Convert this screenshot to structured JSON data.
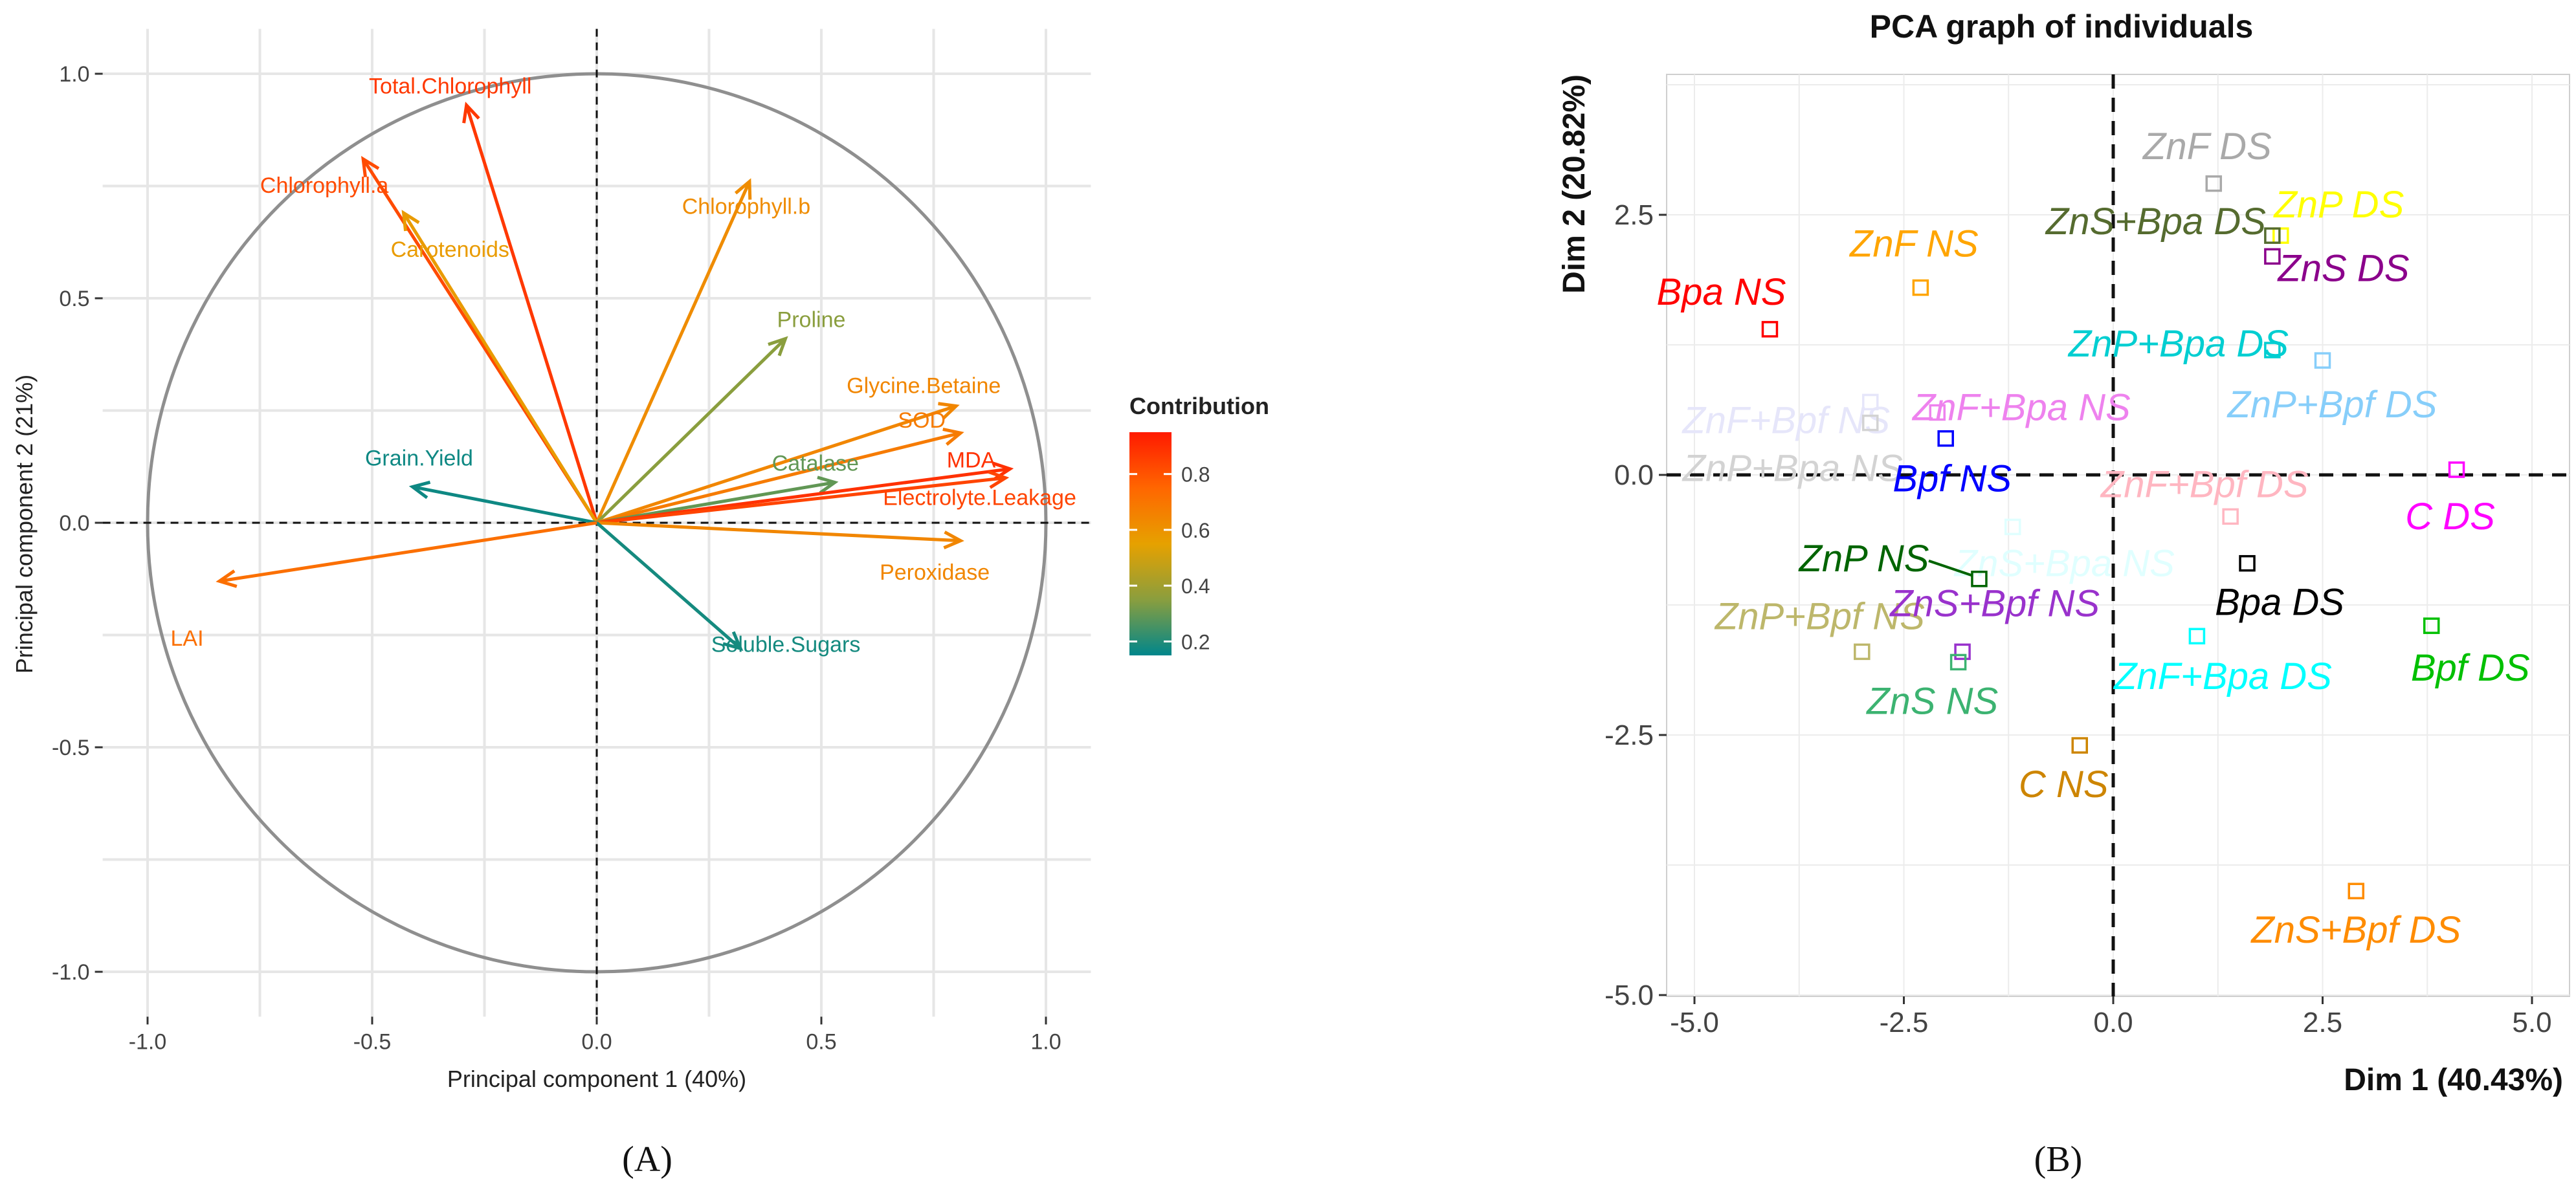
{
  "panel_labels": {
    "a": "(A)",
    "b": "(B)"
  },
  "chart_data": [
    {
      "type": "scatter",
      "subtype": "pca-variable-correlation-circle",
      "title": "",
      "xlabel": "Principal component 1 (40%)",
      "ylabel": "Principal component 2 (21%)",
      "xlim": [
        -1.1,
        1.1
      ],
      "ylim": [
        -1.1,
        1.1
      ],
      "xticks": [
        -1.0,
        -0.5,
        0.0,
        0.5,
        1.0
      ],
      "xtick_labels": [
        "-1.0",
        "-0.5",
        "0.0",
        "0.5",
        "1.0"
      ],
      "yticks": [
        -1.0,
        -0.5,
        0.0,
        0.5,
        1.0
      ],
      "ytick_labels": [
        "-1.0",
        "-0.5",
        "0.0",
        "0.5",
        "1.0"
      ],
      "grid": true,
      "legend": {
        "title": "Contribution",
        "placement": "right",
        "range": [
          0.15,
          0.95
        ],
        "ticks": [
          0.2,
          0.4,
          0.6,
          0.8
        ],
        "tick_labels": [
          "0.2",
          "0.4",
          "0.6",
          "0.8"
        ],
        "colors": [
          "#00868b",
          "#8a9e3e",
          "#e6a100",
          "#ff6600",
          "#ff1a00"
        ]
      },
      "variables": [
        {
          "name": "Total.Chlorophyll",
          "x": -0.29,
          "y": 0.93,
          "contrib": 0.87
        },
        {
          "name": "Chlorophyll.a",
          "x": -0.52,
          "y": 0.81,
          "contrib": 0.82
        },
        {
          "name": "Carotenoids",
          "x": -0.43,
          "y": 0.69,
          "contrib": 0.57
        },
        {
          "name": "Chlorophyll.b",
          "x": 0.34,
          "y": 0.76,
          "contrib": 0.62
        },
        {
          "name": "Proline",
          "x": 0.42,
          "y": 0.41,
          "contrib": 0.35
        },
        {
          "name": "Glycine.Betaine",
          "x": 0.8,
          "y": 0.26,
          "contrib": 0.64
        },
        {
          "name": "SOD",
          "x": 0.81,
          "y": 0.2,
          "contrib": 0.68
        },
        {
          "name": "Catalase",
          "x": 0.53,
          "y": 0.09,
          "contrib": 0.29
        },
        {
          "name": "MDA",
          "x": 0.92,
          "y": 0.12,
          "contrib": 0.89
        },
        {
          "name": "Electrolyte.Leakage",
          "x": 0.91,
          "y": 0.1,
          "contrib": 0.84
        },
        {
          "name": "Peroxidase",
          "x": 0.81,
          "y": -0.04,
          "contrib": 0.64
        },
        {
          "name": "Soluble.Sugars",
          "x": 0.32,
          "y": -0.28,
          "contrib": 0.18
        },
        {
          "name": "Grain.Yield",
          "x": -0.41,
          "y": 0.08,
          "contrib": 0.17
        },
        {
          "name": "LAI",
          "x": -0.84,
          "y": -0.13,
          "contrib": 0.72
        }
      ]
    },
    {
      "type": "scatter",
      "subtype": "pca-individuals",
      "title": "PCA graph of individuals",
      "xlabel": "Dim 1 (40.43%)",
      "ylabel": "Dim 2 (20.82%)",
      "xlim": [
        -5.3,
        5.4
      ],
      "ylim": [
        -5.1,
        4.0
      ],
      "xticks": [
        -5.0,
        -2.5,
        0.0,
        2.5,
        5.0
      ],
      "xtick_labels": [
        "-5.0",
        "-2.5",
        "0.0",
        "2.5",
        "5.0"
      ],
      "yticks": [
        -5.0,
        -2.5,
        0.0,
        2.5
      ],
      "ytick_labels": [
        "-5.0",
        "-2.5",
        "0.0",
        "2.5"
      ],
      "grid": true,
      "legend": null,
      "points": [
        {
          "label": "ZnF DS",
          "x": 1.2,
          "y": 2.8,
          "color": "#a9a9a9"
        },
        {
          "label": "ZnP DS",
          "x": 2.0,
          "y": 2.3,
          "color": "#ffff00"
        },
        {
          "label": "ZnS+Bpa DS",
          "x": 1.9,
          "y": 2.3,
          "color": "#556b2f"
        },
        {
          "label": "ZnS DS",
          "x": 1.9,
          "y": 2.1,
          "color": "#8b008b"
        },
        {
          "label": "ZnF NS",
          "x": -2.3,
          "y": 1.8,
          "color": "#ffa500"
        },
        {
          "label": "Bpa NS",
          "x": -4.1,
          "y": 1.4,
          "color": "#ff0000"
        },
        {
          "label": "ZnP+Bpa DS",
          "x": 1.9,
          "y": 1.2,
          "color": "#00ced1"
        },
        {
          "label": "ZnP+Bpf DS",
          "x": 2.5,
          "y": 1.1,
          "color": "#87cefa"
        },
        {
          "label": "ZnF+Bpf NS",
          "x": -2.9,
          "y": 0.7,
          "color": "#e6e6fa"
        },
        {
          "label": "ZnF+Bpa NS",
          "x": -2.1,
          "y": 0.6,
          "color": "#ee82ee"
        },
        {
          "label": "ZnP+Bpa NS",
          "x": -2.9,
          "y": 0.5,
          "color": "#d3d3d3"
        },
        {
          "label": "Bpf NS",
          "x": -2.0,
          "y": 0.35,
          "color": "#0000ff"
        },
        {
          "label": "C DS",
          "x": 4.1,
          "y": 0.05,
          "color": "#ff00ff"
        },
        {
          "label": "ZnF+Bpf DS",
          "x": 1.4,
          "y": -0.4,
          "color": "#ffb6c1"
        },
        {
          "label": "ZnS+Bpa NS",
          "x": -1.2,
          "y": -0.5,
          "color": "#e0ffff"
        },
        {
          "label": "ZnP NS",
          "x": -1.6,
          "y": -1.0,
          "color": "#006400"
        },
        {
          "label": "Bpa DS",
          "x": 1.6,
          "y": -0.85,
          "color": "#000000"
        },
        {
          "label": "ZnP+Bpf NS",
          "x": -3.0,
          "y": -1.7,
          "color": "#bdb76b"
        },
        {
          "label": "ZnS+Bpf NS",
          "x": -1.8,
          "y": -1.7,
          "color": "#9932cc"
        },
        {
          "label": "ZnS NS",
          "x": -1.85,
          "y": -1.8,
          "color": "#3cb371"
        },
        {
          "label": "ZnF+Bpa DS",
          "x": 1.0,
          "y": -1.55,
          "color": "#00ffff"
        },
        {
          "label": "Bpf DS",
          "x": 3.8,
          "y": -1.45,
          "color": "#00c000"
        },
        {
          "label": "C NS",
          "x": -0.4,
          "y": -2.6,
          "color": "#cd8500"
        },
        {
          "label": "ZnS+Bpf DS",
          "x": 2.9,
          "y": -4.0,
          "color": "#ff8c00"
        }
      ]
    }
  ]
}
